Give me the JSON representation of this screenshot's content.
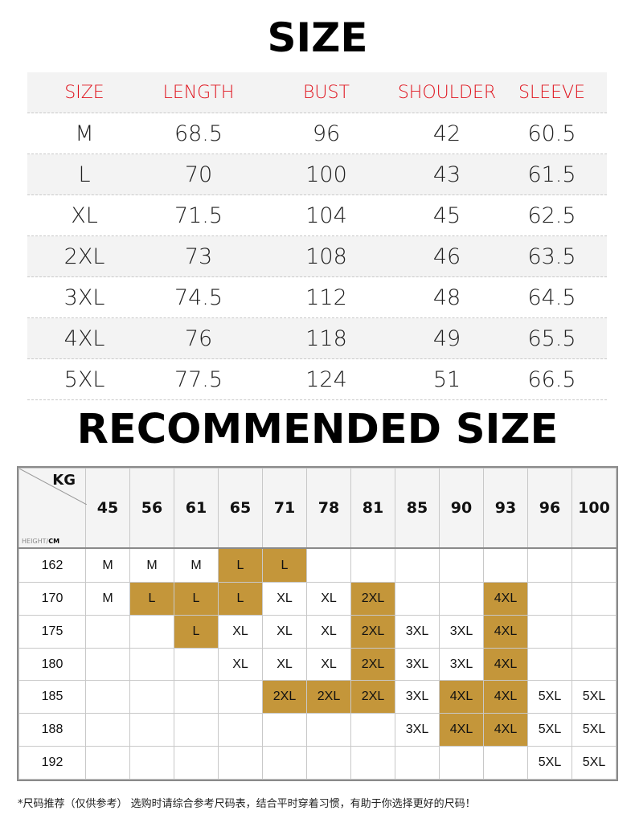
{
  "size_chart": {
    "title": "SIZE",
    "headers": [
      "SIZE",
      "LENGTH",
      "BUST",
      "SHOULDER",
      "SLEEVE"
    ],
    "rows": [
      [
        "M",
        "68.5",
        "96",
        "42",
        "60.5"
      ],
      [
        "L",
        "70",
        "100",
        "43",
        "61.5"
      ],
      [
        "XL",
        "71.5",
        "104",
        "45",
        "62.5"
      ],
      [
        "2XL",
        "73",
        "108",
        "46",
        "63.5"
      ],
      [
        "3XL",
        "74.5",
        "112",
        "48",
        "64.5"
      ],
      [
        "4XL",
        "76",
        "118",
        "49",
        "65.5"
      ],
      [
        "5XL",
        "77.5",
        "124",
        "51",
        "66.5"
      ]
    ]
  },
  "recommended": {
    "title": "RECOMMENDED SIZE",
    "corner_kg": "KG",
    "corner_height": "HEIGHT/",
    "corner_cm": "CM",
    "weights": [
      "45",
      "56",
      "61",
      "65",
      "71",
      "78",
      "81",
      "85",
      "90",
      "93",
      "96",
      "100"
    ],
    "rows": [
      {
        "height": "162",
        "cells": [
          "M",
          "M",
          "M",
          "L",
          "L",
          "",
          "",
          "",
          "",
          "",
          "",
          ""
        ]
      },
      {
        "height": "170",
        "cells": [
          "M",
          "L",
          "L",
          "L",
          "XL",
          "XL",
          "2XL",
          "",
          "",
          "4XL",
          "",
          ""
        ]
      },
      {
        "height": "175",
        "cells": [
          "",
          "",
          "L",
          "XL",
          "XL",
          "XL",
          "2XL",
          "3XL",
          "3XL",
          "4XL",
          "",
          ""
        ]
      },
      {
        "height": "180",
        "cells": [
          "",
          "",
          "",
          "XL",
          "XL",
          "XL",
          "2XL",
          "3XL",
          "3XL",
          "4XL",
          "",
          ""
        ]
      },
      {
        "height": "185",
        "cells": [
          "",
          "",
          "",
          "",
          "2XL",
          "2XL",
          "2XL",
          "3XL",
          "4XL",
          "4XL",
          "5XL",
          "5XL"
        ]
      },
      {
        "height": "188",
        "cells": [
          "",
          "",
          "",
          "",
          "",
          "",
          "",
          "3XL",
          "4XL",
          "4XL",
          "5XL",
          "5XL"
        ]
      },
      {
        "height": "192",
        "cells": [
          "",
          "",
          "",
          "",
          "",
          "",
          "",
          "",
          "",
          "",
          "5XL",
          "5XL"
        ]
      }
    ],
    "highlight": [
      [
        0,
        0,
        0,
        1,
        1,
        0,
        0,
        0,
        0,
        0,
        0,
        0
      ],
      [
        0,
        1,
        1,
        1,
        0,
        0,
        1,
        0,
        0,
        1,
        0,
        0
      ],
      [
        0,
        0,
        1,
        0,
        0,
        0,
        1,
        0,
        0,
        1,
        0,
        0
      ],
      [
        0,
        0,
        0,
        0,
        0,
        0,
        1,
        0,
        0,
        1,
        0,
        0
      ],
      [
        0,
        0,
        0,
        0,
        1,
        1,
        1,
        0,
        1,
        1,
        0,
        0
      ],
      [
        0,
        0,
        0,
        0,
        0,
        0,
        0,
        0,
        1,
        1,
        0,
        0
      ],
      [
        0,
        0,
        0,
        0,
        0,
        0,
        0,
        0,
        0,
        0,
        0,
        0
      ]
    ],
    "highlight_color": "#c4963a"
  },
  "footnote": "*尺码推荐（仅供参考） 选购时请综合参考尺码表，结合平时穿着习惯，有助于你选择更好的尺码！"
}
